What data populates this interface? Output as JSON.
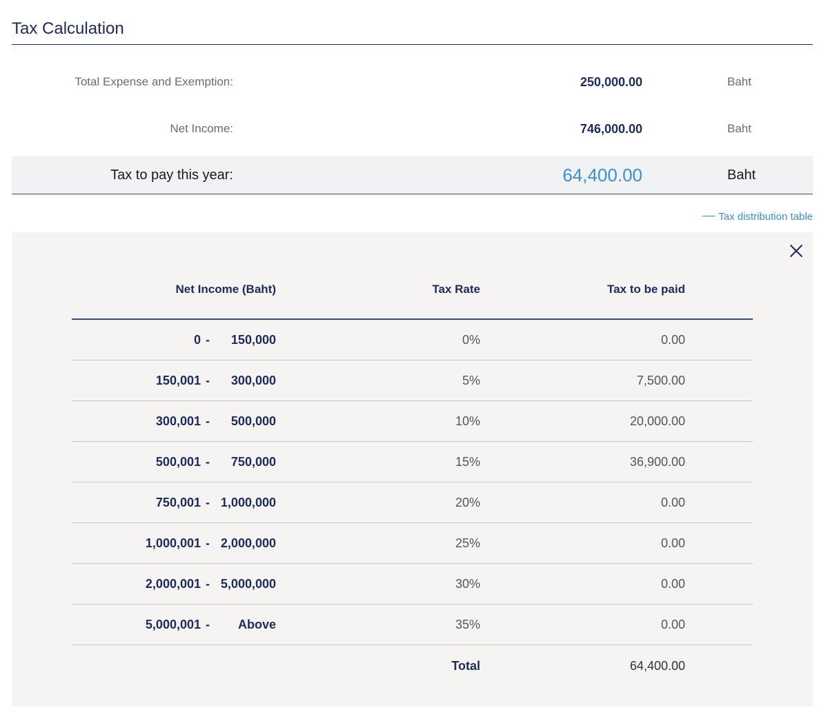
{
  "header": {
    "title": "Tax Calculation"
  },
  "summary": {
    "expense": {
      "label": "Total Expense and Exemption:",
      "value": "250,000.00",
      "unit": "Baht"
    },
    "net_income": {
      "label": "Net Income:",
      "value": "746,000.00",
      "unit": "Baht"
    },
    "tax_to_pay": {
      "label": "Tax to pay this year:",
      "value": "64,400.00",
      "unit": "Baht"
    }
  },
  "toggle": {
    "label": "Tax distribution table"
  },
  "table": {
    "headers": {
      "income": "Net Income (Baht)",
      "rate": "Tax Rate",
      "tax": "Tax to be paid"
    },
    "rows": [
      {
        "from": "0",
        "sep": "-",
        "to": "150,000",
        "rate": "0%",
        "tax": "0.00"
      },
      {
        "from": "150,001",
        "sep": "-",
        "to": "300,000",
        "rate": "5%",
        "tax": "7,500.00"
      },
      {
        "from": "300,001",
        "sep": "-",
        "to": "500,000",
        "rate": "10%",
        "tax": "20,000.00"
      },
      {
        "from": "500,001",
        "sep": "-",
        "to": "750,000",
        "rate": "15%",
        "tax": "36,900.00"
      },
      {
        "from": "750,001",
        "sep": "-",
        "to": "1,000,000",
        "rate": "20%",
        "tax": "0.00"
      },
      {
        "from": "1,000,001",
        "sep": "-",
        "to": "2,000,000",
        "rate": "25%",
        "tax": "0.00"
      },
      {
        "from": "2,000,001",
        "sep": "-",
        "to": "5,000,000",
        "rate": "30%",
        "tax": "0.00"
      },
      {
        "from": "5,000,001",
        "sep": "-",
        "to": "Above",
        "rate": "35%",
        "tax": "0.00"
      }
    ],
    "total": {
      "label": "Total",
      "value": "64,400.00"
    }
  },
  "colors": {
    "primary": "#1d2a5b",
    "accent": "#3a8ed6",
    "panel_bg": "#f5f4f3",
    "highlight_bg": "#f1f2f4"
  },
  "icons": {
    "close": "close-icon",
    "toggle": "dash-icon"
  }
}
